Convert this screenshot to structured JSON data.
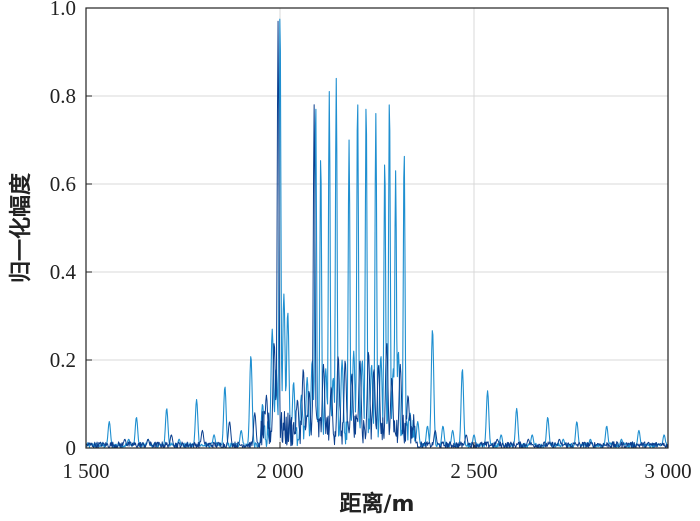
{
  "chart_data": {
    "type": "line",
    "title": "",
    "xlabel": "距离/m",
    "ylabel": "归一化幅度",
    "xlim": [
      1500,
      3000
    ],
    "ylim": [
      0,
      1.0
    ],
    "grid": true,
    "x_ticks": [
      1500,
      2000,
      2500,
      3000
    ],
    "x_tick_labels": [
      "1 500",
      "2 000",
      "2 500",
      "3 000"
    ],
    "y_ticks": [
      0,
      0.2,
      0.4,
      0.6,
      0.8,
      1.0
    ],
    "y_tick_labels": [
      "0",
      "0.2",
      "0.4",
      "0.6",
      "0.8",
      "1.0"
    ],
    "colors": {
      "light_series": "#1f8fd0",
      "dark_series": "#0b3f8e",
      "grid": "#d9d9d9",
      "axis": "#222222"
    },
    "series": [
      {
        "color_key": "light_series",
        "peaks": [
          [
            1560,
            0.06
          ],
          [
            1610,
            0.02
          ],
          [
            1630,
            0.07
          ],
          [
            1660,
            0.02
          ],
          [
            1708,
            0.09
          ],
          [
            1740,
            0.02
          ],
          [
            1785,
            0.11
          ],
          [
            1830,
            0.03
          ],
          [
            1858,
            0.14
          ],
          [
            1900,
            0.04
          ],
          [
            1925,
            0.21
          ],
          [
            1955,
            0.1
          ],
          [
            1980,
            0.27
          ],
          [
            1990,
            0.18
          ],
          [
            2000,
            1.0
          ],
          [
            2010,
            0.35
          ],
          [
            2020,
            0.31
          ],
          [
            2035,
            0.15
          ],
          [
            2055,
            0.12
          ],
          [
            2070,
            0.16
          ],
          [
            2083,
            0.2
          ],
          [
            2092,
            0.79
          ],
          [
            2105,
            0.67
          ],
          [
            2118,
            0.18
          ],
          [
            2127,
            0.81
          ],
          [
            2137,
            0.16
          ],
          [
            2145,
            0.84
          ],
          [
            2160,
            0.2
          ],
          [
            2178,
            0.7
          ],
          [
            2190,
            0.22
          ],
          [
            2200,
            0.8
          ],
          [
            2212,
            0.2
          ],
          [
            2222,
            0.79
          ],
          [
            2236,
            0.19
          ],
          [
            2247,
            0.76
          ],
          [
            2260,
            0.21
          ],
          [
            2270,
            0.66
          ],
          [
            2282,
            0.8
          ],
          [
            2292,
            0.18
          ],
          [
            2298,
            0.63
          ],
          [
            2305,
            0.22
          ],
          [
            2320,
            0.68
          ],
          [
            2335,
            0.08
          ],
          [
            2355,
            0.06
          ],
          [
            2380,
            0.05
          ],
          [
            2393,
            0.27
          ],
          [
            2420,
            0.05
          ],
          [
            2445,
            0.04
          ],
          [
            2470,
            0.18
          ],
          [
            2500,
            0.03
          ],
          [
            2535,
            0.13
          ],
          [
            2570,
            0.03
          ],
          [
            2610,
            0.09
          ],
          [
            2650,
            0.03
          ],
          [
            2690,
            0.07
          ],
          [
            2730,
            0.02
          ],
          [
            2765,
            0.06
          ],
          [
            2800,
            0.02
          ],
          [
            2842,
            0.05
          ],
          [
            2880,
            0.02
          ],
          [
            2925,
            0.04
          ],
          [
            2990,
            0.03
          ]
        ]
      },
      {
        "color_key": "dark_series",
        "peaks": [
          [
            1545,
            0.01
          ],
          [
            1600,
            0.02
          ],
          [
            1660,
            0.02
          ],
          [
            1720,
            0.03
          ],
          [
            1800,
            0.04
          ],
          [
            1870,
            0.06
          ],
          [
            1935,
            0.08
          ],
          [
            1965,
            0.12
          ],
          [
            1985,
            0.24
          ],
          [
            1995,
            0.97
          ],
          [
            2045,
            0.11
          ],
          [
            2060,
            0.18
          ],
          [
            2075,
            0.13
          ],
          [
            2088,
            0.78
          ],
          [
            2112,
            0.19
          ],
          [
            2132,
            0.14
          ],
          [
            2150,
            0.21
          ],
          [
            2168,
            0.2
          ],
          [
            2185,
            0.17
          ],
          [
            2206,
            0.2
          ],
          [
            2228,
            0.22
          ],
          [
            2242,
            0.18
          ],
          [
            2254,
            0.19
          ],
          [
            2275,
            0.24
          ],
          [
            2288,
            0.16
          ],
          [
            2310,
            0.19
          ],
          [
            2330,
            0.12
          ],
          [
            2345,
            0.05
          ],
          [
            2400,
            0.04
          ],
          [
            2480,
            0.03
          ],
          [
            2560,
            0.02
          ],
          [
            2640,
            0.02
          ],
          [
            2720,
            0.02
          ],
          [
            2820,
            0.01
          ],
          [
            2900,
            0.01
          ],
          [
            2980,
            0.01
          ]
        ]
      }
    ]
  }
}
